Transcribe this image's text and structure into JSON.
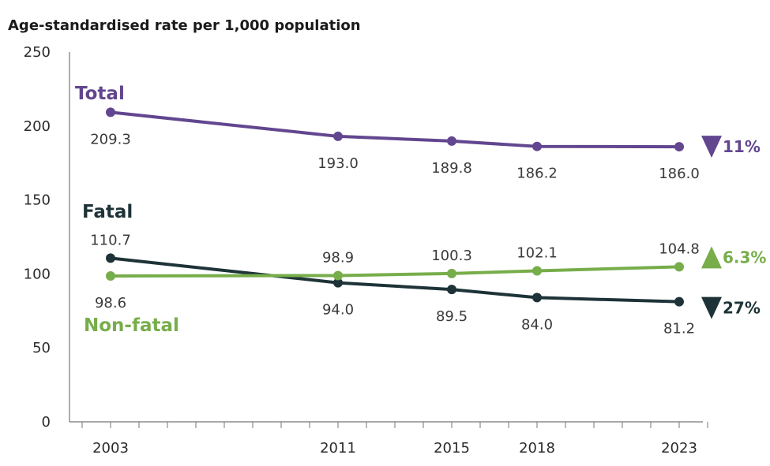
{
  "chart_data": {
    "type": "line",
    "ylabel": "Age-standardised rate per 1,000 population",
    "ylim": [
      0,
      250
    ],
    "yticks": [
      0,
      50,
      100,
      150,
      200,
      250
    ],
    "xlim": [
      2003,
      2023
    ],
    "x": [
      2003,
      2011,
      2015,
      2018,
      2023
    ],
    "xtick_labels": [
      "2003",
      "2011",
      "2015",
      "2018",
      "2023"
    ],
    "grid": false,
    "series": [
      {
        "key": "total",
        "name": "Total",
        "color": "#62468f",
        "values": [
          209.3,
          193.0,
          189.8,
          186.2,
          186.0
        ],
        "labels": [
          "209.3",
          "193.0",
          "189.8",
          "186.2",
          "186.0"
        ],
        "label_pos": [
          "below",
          "below",
          "below",
          "below",
          "below"
        ],
        "change": "11%",
        "direction": "down"
      },
      {
        "key": "fatal",
        "name": "Fatal",
        "color": "#1d3338",
        "values": [
          110.7,
          94.0,
          89.5,
          84.0,
          81.2
        ],
        "labels": [
          "110.7",
          "94.0",
          "89.5",
          "84.0",
          "81.2"
        ],
        "label_pos": [
          "above",
          "below",
          "below",
          "below",
          "below"
        ],
        "change": "27%",
        "direction": "down"
      },
      {
        "key": "nonfatal",
        "name": "Non-fatal",
        "color": "#77ad4a",
        "values": [
          98.6,
          98.9,
          100.3,
          102.1,
          104.8
        ],
        "labels": [
          "98.6",
          "98.9",
          "100.3",
          "102.1",
          "104.8"
        ],
        "label_pos": [
          "below",
          "above",
          "above",
          "above",
          "above"
        ],
        "change": "6.3%",
        "direction": "up"
      }
    ]
  }
}
